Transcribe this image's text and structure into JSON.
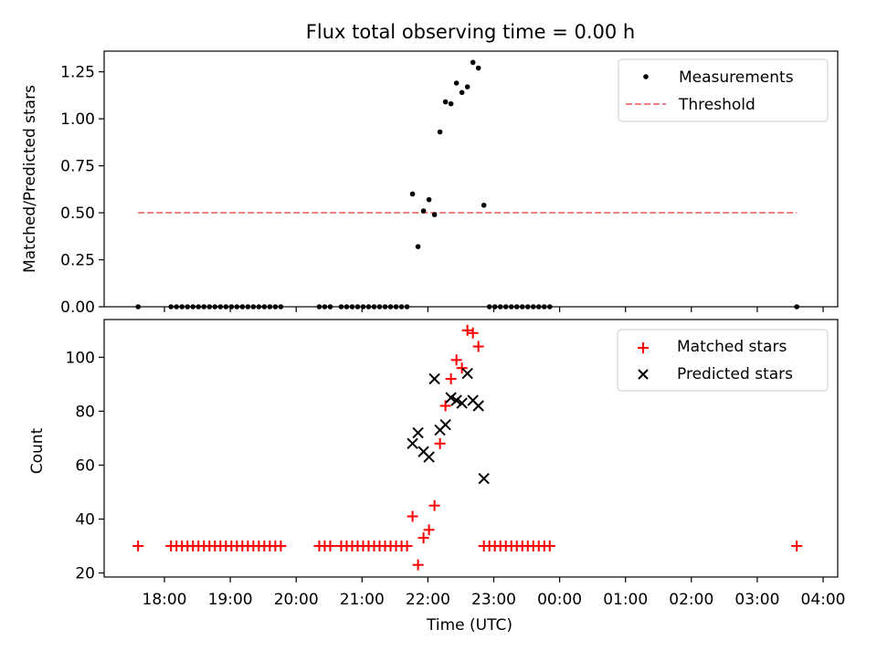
{
  "chart_data": [
    {
      "type": "scatter",
      "title": "Flux total observing time = 0.00 h",
      "xlabel": "",
      "ylabel": "Matched/Predicted stars",
      "ylim": [
        0,
        1.36
      ],
      "yticks": [
        0.0,
        0.25,
        0.5,
        0.75,
        1.0,
        1.25
      ],
      "ytick_labels": [
        "0.00",
        "0.25",
        "0.50",
        "0.75",
        "1.00",
        "1.25"
      ],
      "legend_position": "top-right",
      "series": [
        {
          "name": "Measurements",
          "kind": "scatter",
          "marker": "dot",
          "color": "#000000",
          "points": [
            [
              "17:36",
              0
            ],
            [
              "18:06",
              0
            ],
            [
              "18:11",
              0
            ],
            [
              "18:16",
              0
            ],
            [
              "18:21",
              0
            ],
            [
              "18:26",
              0
            ],
            [
              "18:31",
              0
            ],
            [
              "18:36",
              0
            ],
            [
              "18:41",
              0
            ],
            [
              "18:46",
              0
            ],
            [
              "18:51",
              0
            ],
            [
              "18:56",
              0
            ],
            [
              "19:01",
              0
            ],
            [
              "19:06",
              0
            ],
            [
              "19:11",
              0
            ],
            [
              "19:16",
              0
            ],
            [
              "19:21",
              0
            ],
            [
              "19:26",
              0
            ],
            [
              "19:31",
              0
            ],
            [
              "19:36",
              0
            ],
            [
              "19:41",
              0
            ],
            [
              "19:46",
              0
            ],
            [
              "20:21",
              0
            ],
            [
              "20:26",
              0
            ],
            [
              "20:31",
              0
            ],
            [
              "20:41",
              0
            ],
            [
              "20:46",
              0
            ],
            [
              "20:51",
              0
            ],
            [
              "20:56",
              0
            ],
            [
              "21:01",
              0
            ],
            [
              "21:06",
              0
            ],
            [
              "21:11",
              0
            ],
            [
              "21:16",
              0
            ],
            [
              "21:21",
              0
            ],
            [
              "21:26",
              0
            ],
            [
              "21:31",
              0
            ],
            [
              "21:36",
              0
            ],
            [
              "21:41",
              0
            ],
            [
              "21:46",
              0.6
            ],
            [
              "21:51",
              0.32
            ],
            [
              "21:56",
              0.51
            ],
            [
              "22:01",
              0.57
            ],
            [
              "22:06",
              0.49
            ],
            [
              "22:11",
              0.93
            ],
            [
              "22:16",
              1.09
            ],
            [
              "22:21",
              1.08
            ],
            [
              "22:26",
              1.19
            ],
            [
              "22:31",
              1.14
            ],
            [
              "22:36",
              1.17
            ],
            [
              "22:41",
              1.3
            ],
            [
              "22:46",
              1.27
            ],
            [
              "22:51",
              0.54
            ],
            [
              "22:56",
              0
            ],
            [
              "23:01",
              0
            ],
            [
              "23:06",
              0
            ],
            [
              "23:11",
              0
            ],
            [
              "23:16",
              0
            ],
            [
              "23:21",
              0
            ],
            [
              "23:26",
              0
            ],
            [
              "23:31",
              0
            ],
            [
              "23:36",
              0
            ],
            [
              "23:41",
              0
            ],
            [
              "23:46",
              0
            ],
            [
              "23:51",
              0
            ],
            [
              "03:36",
              0
            ]
          ]
        },
        {
          "name": "Threshold",
          "kind": "line",
          "style": "dashed",
          "color": "#f08080",
          "points": [
            [
              "17:36",
              0.5
            ],
            [
              "03:36",
              0.5
            ]
          ]
        }
      ]
    },
    {
      "type": "scatter",
      "title": "",
      "xlabel": "Time (UTC)",
      "ylabel": "Count",
      "ylim": [
        18.5,
        114
      ],
      "yticks": [
        20,
        40,
        60,
        80,
        100
      ],
      "ytick_labels": [
        "20",
        "40",
        "60",
        "80",
        "100"
      ],
      "xticks": [
        "18:00",
        "19:00",
        "20:00",
        "21:00",
        "22:00",
        "23:00",
        "00:00",
        "01:00",
        "02:00",
        "03:00",
        "04:00"
      ],
      "legend_position": "top-right",
      "series": [
        {
          "name": "Matched stars",
          "kind": "scatter",
          "marker": "plus",
          "color": "#ff0000",
          "points": [
            [
              "17:36",
              30
            ],
            [
              "18:06",
              30
            ],
            [
              "18:11",
              30
            ],
            [
              "18:16",
              30
            ],
            [
              "18:21",
              30
            ],
            [
              "18:26",
              30
            ],
            [
              "18:31",
              30
            ],
            [
              "18:36",
              30
            ],
            [
              "18:41",
              30
            ],
            [
              "18:46",
              30
            ],
            [
              "18:51",
              30
            ],
            [
              "18:56",
              30
            ],
            [
              "19:01",
              30
            ],
            [
              "19:06",
              30
            ],
            [
              "19:11",
              30
            ],
            [
              "19:16",
              30
            ],
            [
              "19:21",
              30
            ],
            [
              "19:26",
              30
            ],
            [
              "19:31",
              30
            ],
            [
              "19:36",
              30
            ],
            [
              "19:41",
              30
            ],
            [
              "19:46",
              30
            ],
            [
              "20:21",
              30
            ],
            [
              "20:26",
              30
            ],
            [
              "20:31",
              30
            ],
            [
              "20:41",
              30
            ],
            [
              "20:46",
              30
            ],
            [
              "20:51",
              30
            ],
            [
              "20:56",
              30
            ],
            [
              "21:01",
              30
            ],
            [
              "21:06",
              30
            ],
            [
              "21:11",
              30
            ],
            [
              "21:16",
              30
            ],
            [
              "21:21",
              30
            ],
            [
              "21:26",
              30
            ],
            [
              "21:31",
              30
            ],
            [
              "21:36",
              30
            ],
            [
              "21:41",
              30
            ],
            [
              "21:46",
              41
            ],
            [
              "21:51",
              23
            ],
            [
              "21:56",
              33
            ],
            [
              "22:01",
              36
            ],
            [
              "22:06",
              45
            ],
            [
              "22:11",
              68
            ],
            [
              "22:16",
              82
            ],
            [
              "22:21",
              92
            ],
            [
              "22:26",
              99
            ],
            [
              "22:31",
              96
            ],
            [
              "22:36",
              110
            ],
            [
              "22:41",
              109
            ],
            [
              "22:46",
              104
            ],
            [
              "22:51",
              30
            ],
            [
              "22:56",
              30
            ],
            [
              "23:01",
              30
            ],
            [
              "23:06",
              30
            ],
            [
              "23:11",
              30
            ],
            [
              "23:16",
              30
            ],
            [
              "23:21",
              30
            ],
            [
              "23:26",
              30
            ],
            [
              "23:31",
              30
            ],
            [
              "23:36",
              30
            ],
            [
              "23:41",
              30
            ],
            [
              "23:46",
              30
            ],
            [
              "23:51",
              30
            ],
            [
              "03:36",
              30
            ]
          ]
        },
        {
          "name": "Predicted stars",
          "kind": "scatter",
          "marker": "x",
          "color": "#000000",
          "points": [
            [
              "21:46",
              68
            ],
            [
              "21:51",
              72
            ],
            [
              "21:56",
              65
            ],
            [
              "22:01",
              63
            ],
            [
              "22:06",
              92
            ],
            [
              "22:11",
              73
            ],
            [
              "22:16",
              75
            ],
            [
              "22:21",
              85
            ],
            [
              "22:26",
              84
            ],
            [
              "22:31",
              83
            ],
            [
              "22:36",
              94
            ],
            [
              "22:41",
              84
            ],
            [
              "22:46",
              82
            ],
            [
              "22:51",
              55
            ]
          ]
        }
      ]
    }
  ]
}
